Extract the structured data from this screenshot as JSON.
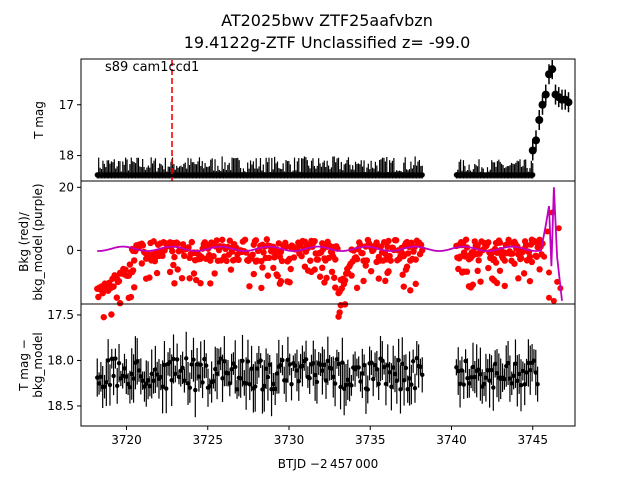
{
  "figure": {
    "title_line1": "AT2025bwv  ZTF25aafvbzn",
    "title_line2": "19.4122g-ZTF Unclassified z= -99.0",
    "xlabel": "BTJD −2 457 000"
  },
  "chart_data": [
    {
      "type": "scatter",
      "panel": "top",
      "ylabel": "T mag",
      "ylim": [
        18.5,
        16.1
      ],
      "xlim": [
        3717.2,
        3747.6
      ],
      "yticks": [
        17,
        18
      ],
      "annotation": "s89 cam1ccd1",
      "marker_line": {
        "x": 3722.8,
        "color": "#ff0000",
        "style": "dashed"
      },
      "color": "#000000",
      "segments": [
        {
          "x_start": 3718.2,
          "x_end": 3738.2,
          "baseline_mag": 18.4,
          "scatter": 0.35,
          "n": 230
        },
        {
          "x_start": 3740.3,
          "x_end": 3745.0,
          "baseline_mag": 18.4,
          "scatter": 0.3,
          "n": 55
        }
      ],
      "rise_points": [
        {
          "x": 3745.0,
          "y": 17.9
        },
        {
          "x": 3745.2,
          "y": 17.7
        },
        {
          "x": 3745.4,
          "y": 17.3
        },
        {
          "x": 3745.6,
          "y": 17.0
        },
        {
          "x": 3745.8,
          "y": 16.8
        },
        {
          "x": 3746.0,
          "y": 16.4
        },
        {
          "x": 3746.2,
          "y": 16.3
        },
        {
          "x": 3746.4,
          "y": 16.8
        },
        {
          "x": 3746.6,
          "y": 16.85
        },
        {
          "x": 3746.8,
          "y": 16.9
        },
        {
          "x": 3747.0,
          "y": 16.9
        },
        {
          "x": 3747.2,
          "y": 16.95
        }
      ]
    },
    {
      "type": "scatter",
      "panel": "middle",
      "ylabel_line1": "Bkg (red)/",
      "ylabel_line2": "bkg_model (purple)",
      "ylim": [
        -17,
        22
      ],
      "yticks": [
        0,
        20
      ],
      "series": [
        {
          "color": "#ff0000",
          "baseline": 0.0,
          "scatter": 3.5,
          "dips": [
            {
              "x_start": 3718.2,
              "x_end": 3720.3,
              "value": -14
            },
            {
              "x_start": 3733.0,
              "x_end": 3733.8,
              "value": -13
            }
          ]
        },
        {
          "color": "#bf00bf",
          "baseline": 0.5,
          "spike": [
            {
              "x": 3746.3,
              "y": 20
            },
            {
              "x": 3746.8,
              "y": -16
            }
          ]
        }
      ],
      "gap": [
        3738.2,
        3740.3
      ]
    },
    {
      "type": "scatter",
      "panel": "bottom",
      "ylabel_line1": "T mag −",
      "ylabel_line2": "bkg_model",
      "ylim": [
        18.72,
        17.38
      ],
      "yticks": [
        17.5,
        18.0,
        18.5
      ],
      "xticks": [
        3720,
        3725,
        3730,
        3735,
        3740,
        3745
      ],
      "color": "#000000",
      "segments": [
        {
          "x_start": 3718.2,
          "x_end": 3738.2,
          "center": 18.15,
          "scatter": 0.2
        },
        {
          "x_start": 3740.3,
          "x_end": 3745.3,
          "center": 18.15,
          "scatter": 0.2
        }
      ]
    }
  ]
}
